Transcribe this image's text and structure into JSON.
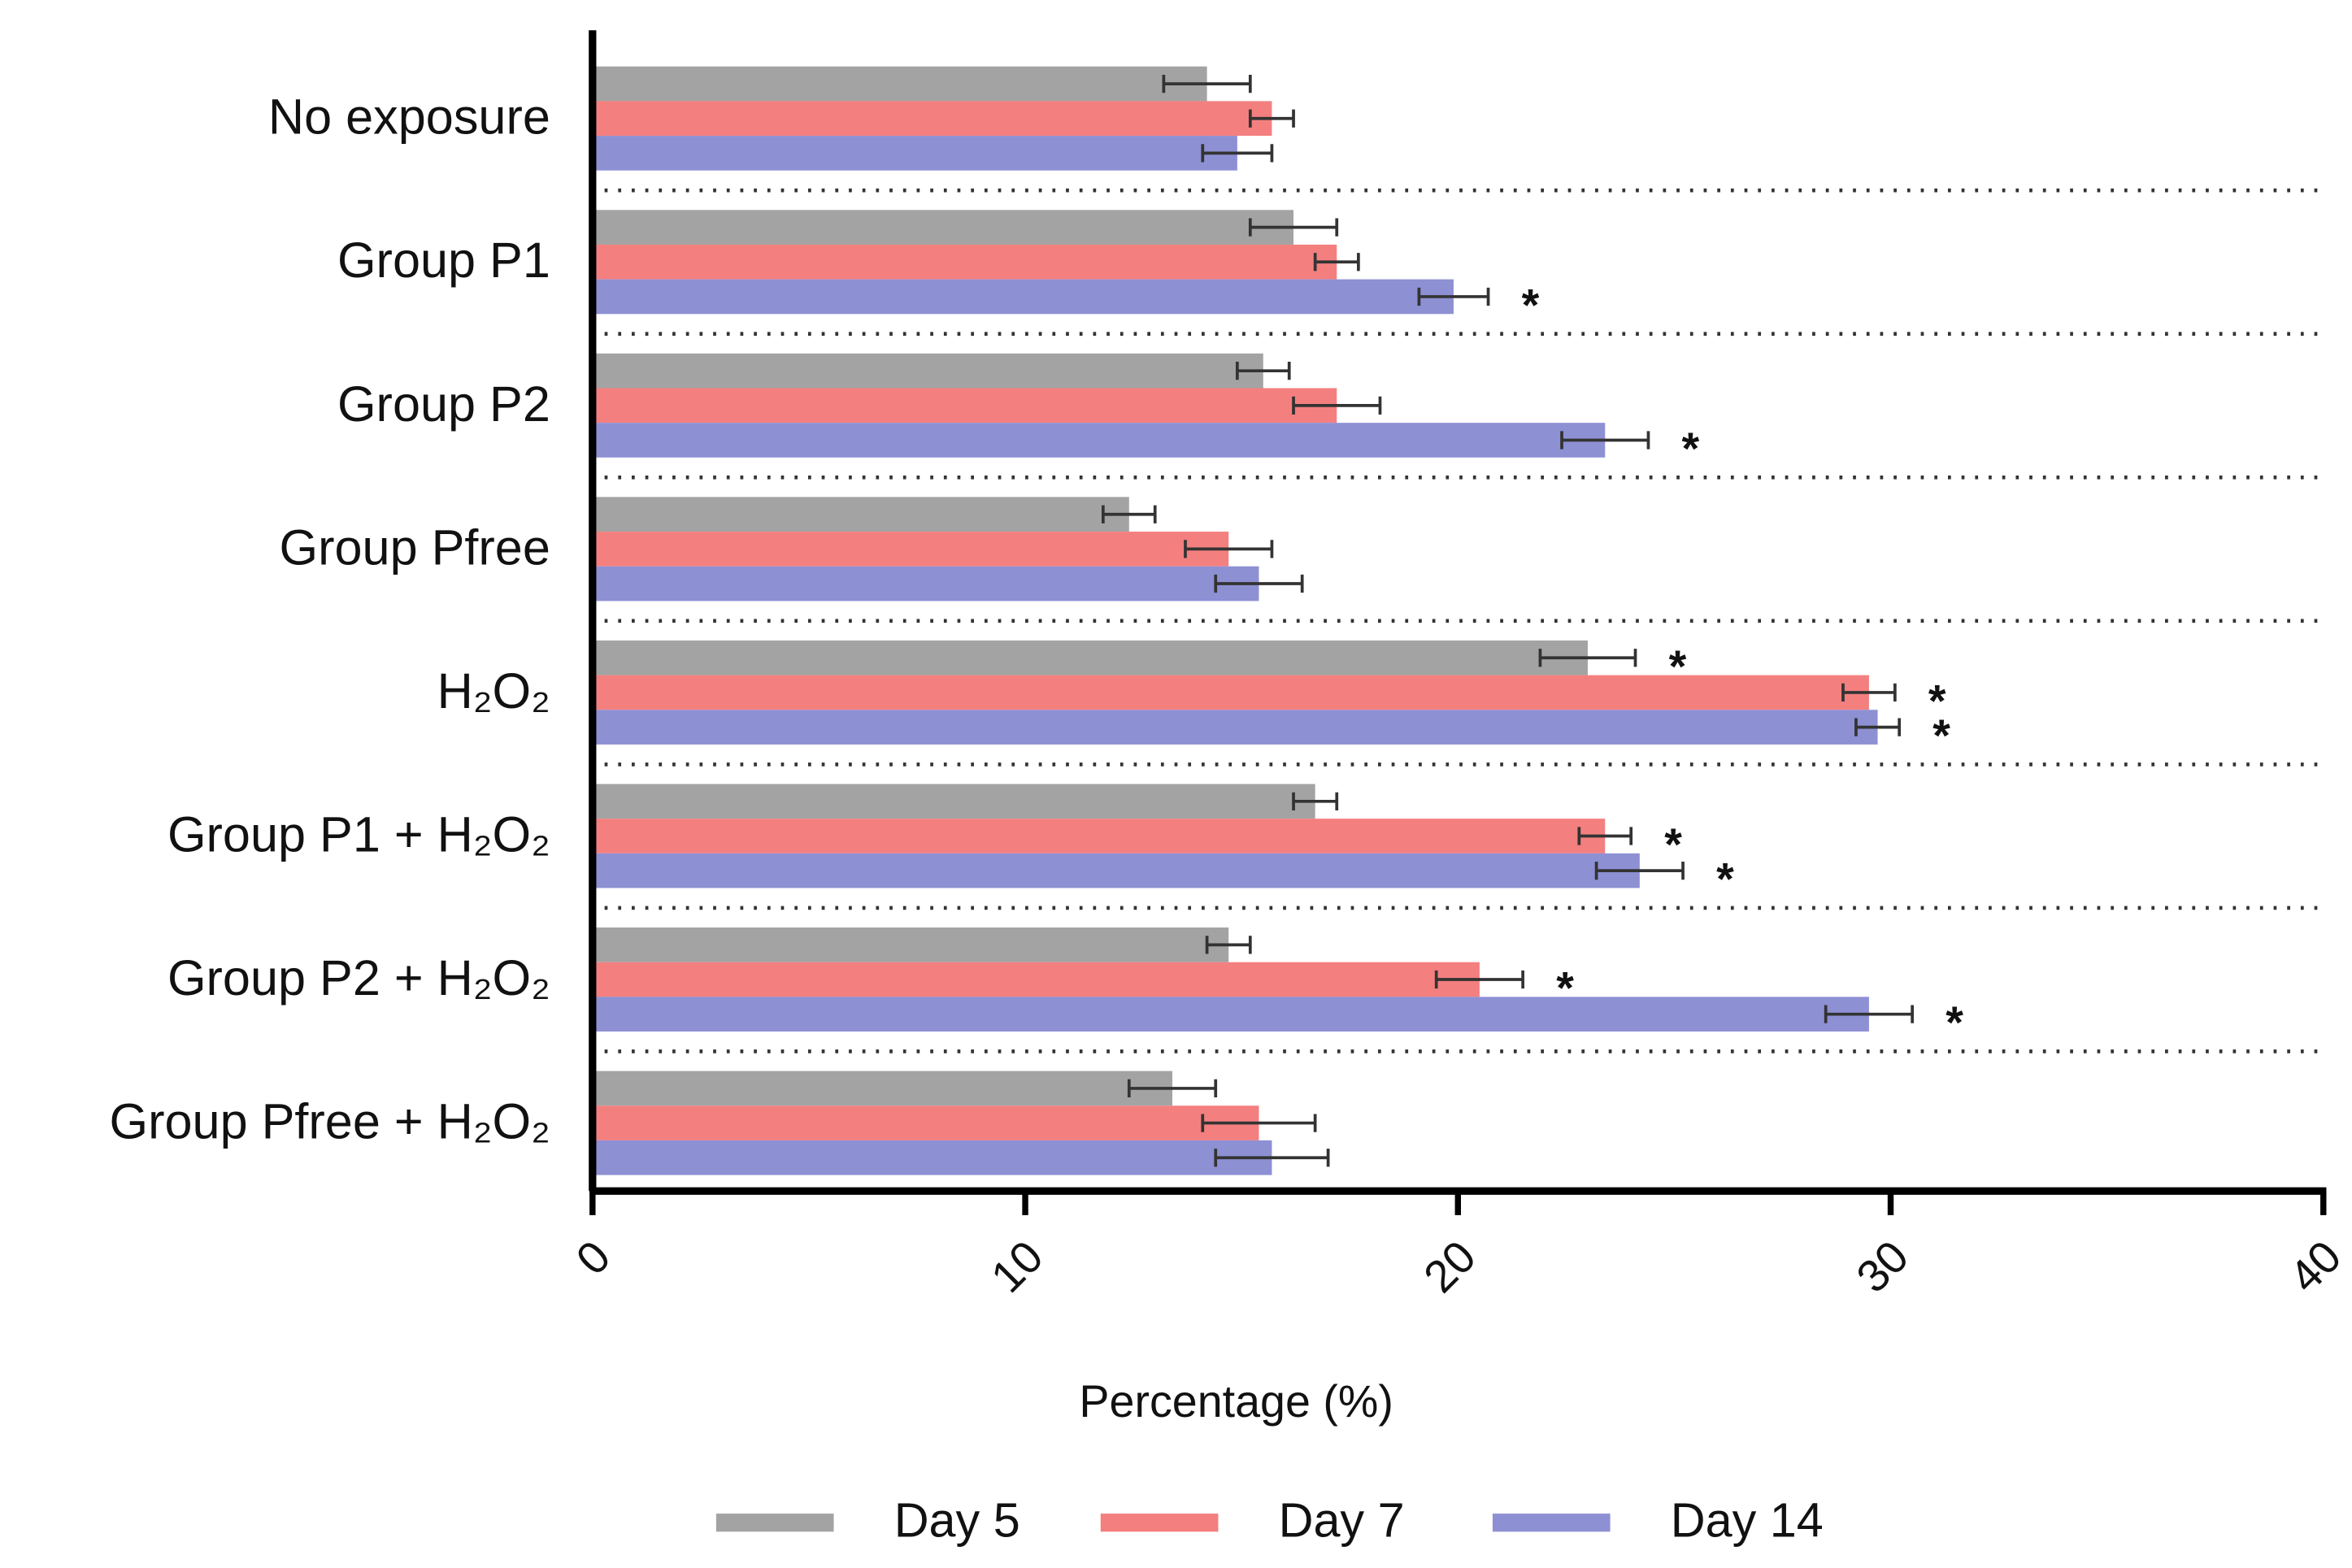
{
  "chart_data": {
    "type": "barh",
    "xlabel": "Percentage (%)",
    "xlim": [
      0,
      40
    ],
    "xticks": [
      0,
      10,
      20,
      30,
      40
    ],
    "categories": [
      "No exposure",
      "Group P1",
      "Group P2",
      "Group Pfree",
      "H₂O₂",
      "Group P1 + H₂O₂",
      "Group P2 + H₂O₂",
      "Group Pfree + H₂O₂"
    ],
    "legend_position": "bottom",
    "series": [
      {
        "name": "Day 5",
        "color": "#a3a3a3",
        "values": [
          14.2,
          16.2,
          15.5,
          12.4,
          23.0,
          16.7,
          14.7,
          13.4
        ],
        "errors": [
          1.0,
          1.0,
          0.6,
          0.6,
          1.1,
          0.5,
          0.5,
          1.0
        ],
        "significance": [
          null,
          null,
          null,
          null,
          "*",
          null,
          null,
          null
        ]
      },
      {
        "name": "Day 7",
        "color": "#f47f7f",
        "values": [
          15.7,
          17.2,
          17.2,
          14.7,
          29.5,
          23.4,
          20.5,
          15.4
        ],
        "errors": [
          0.5,
          0.5,
          1.0,
          1.0,
          0.6,
          0.6,
          1.0,
          1.3
        ],
        "significance": [
          null,
          null,
          null,
          null,
          "*",
          "*",
          "*",
          null
        ]
      },
      {
        "name": "Day 14",
        "color": "#8e90d4",
        "values": [
          14.9,
          19.9,
          23.4,
          15.4,
          29.7,
          24.2,
          29.5,
          15.7
        ],
        "errors": [
          0.8,
          0.8,
          1.0,
          1.0,
          0.5,
          1.0,
          1.0,
          1.3
        ],
        "significance": [
          null,
          "*",
          "*",
          null,
          "*",
          "*",
          "*",
          null
        ]
      }
    ]
  }
}
